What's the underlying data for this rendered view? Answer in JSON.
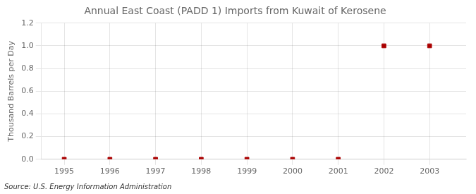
{
  "chart_data": {
    "type": "scatter",
    "title": "Annual East Coast (PADD 1) Imports from Kuwait of Kerosene",
    "ylabel": "Thousand Barrels per Day",
    "annotation": "Source: U.S. Energy Information Administration",
    "x": [
      1995,
      1996,
      1997,
      1998,
      1999,
      2000,
      2001,
      2002,
      2003
    ],
    "values": [
      0.0,
      0.0,
      0.0,
      0.0,
      0.0,
      0.0,
      0.0,
      1.0,
      1.0
    ],
    "color": "#AA0000",
    "marker": "square",
    "xlim": [
      1994.5,
      2003.8
    ],
    "ylim": [
      0.0,
      1.2
    ],
    "xticks": [
      1995,
      1996,
      1997,
      1998,
      1999,
      2000,
      2001,
      2002,
      2003
    ],
    "yticks": [
      {
        "value": 0.0,
        "label": "0.0"
      },
      0.2,
      0.4,
      0.6,
      0.8,
      {
        "value": 1.0,
        "label": "1.0"
      },
      1.2
    ],
    "grid": true
  }
}
